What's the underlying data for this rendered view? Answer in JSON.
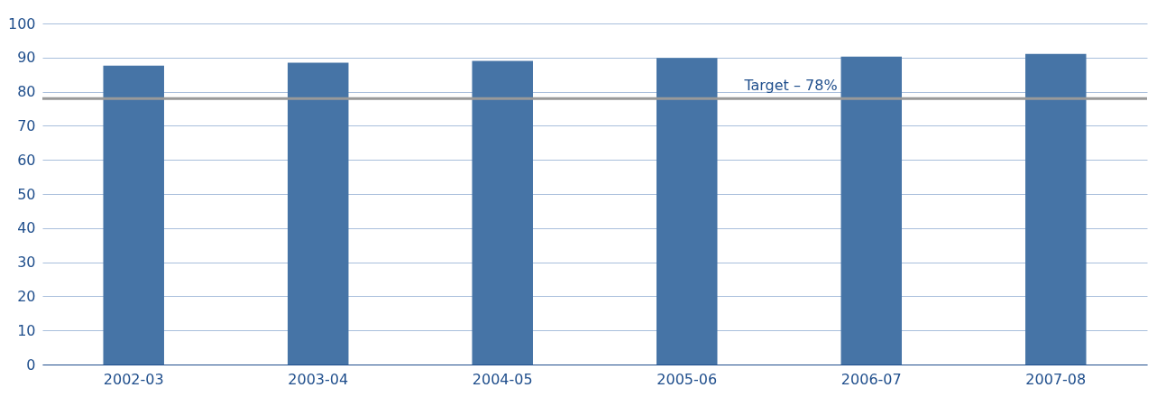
{
  "chart_data": {
    "type": "bar",
    "categories": [
      "2002-03",
      "2003-04",
      "2004-05",
      "2005-06",
      "2006-07",
      "2007-08"
    ],
    "series": [
      {
        "color": "#4674a6",
        "values": [
          87.6,
          88.5,
          89.0,
          89.9,
          90.3,
          91.1
        ]
      }
    ],
    "ylim": [
      0,
      100
    ],
    "yticks": [
      0,
      10,
      20,
      30,
      40,
      50,
      60,
      70,
      80,
      90,
      100
    ],
    "grid": "y",
    "ref_lines": [
      {
        "axis": "y",
        "value": 78,
        "label": "Target – 78%",
        "color": "#999999"
      }
    ]
  }
}
